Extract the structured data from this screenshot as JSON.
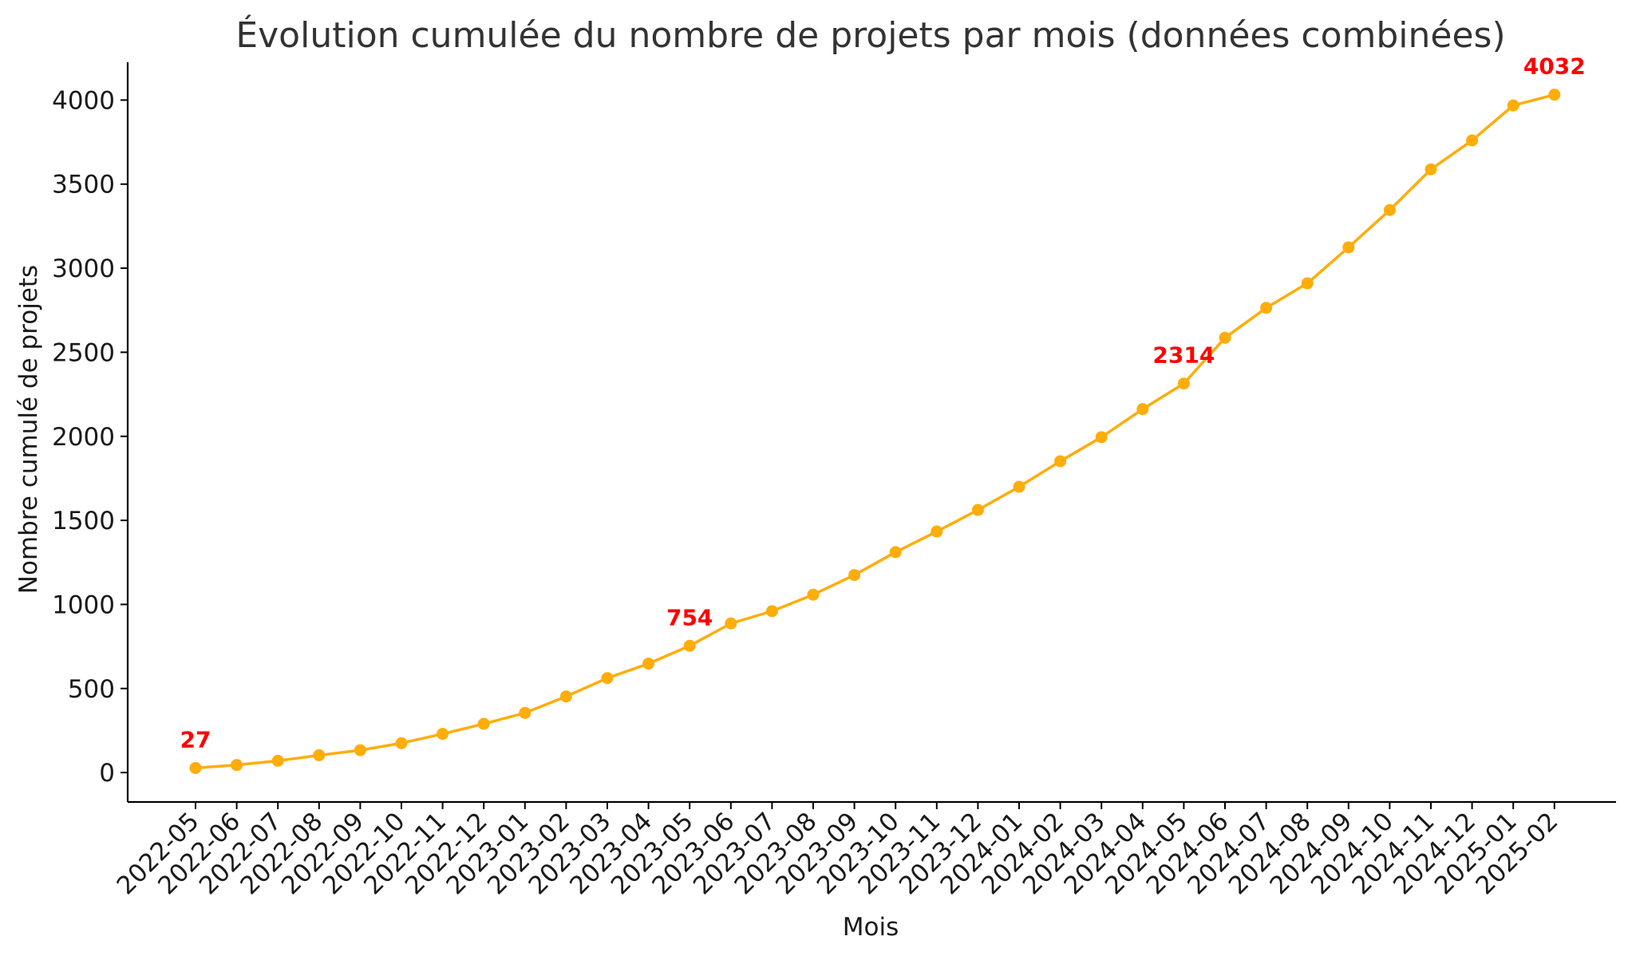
{
  "chart_data": {
    "type": "line",
    "title": "Évolution cumulée du nombre de projets par mois (données combinées)",
    "xlabel": "Mois",
    "ylabel": "Nombre cumulé de projets",
    "ylim": [
      -175,
      4225
    ],
    "yticks": [
      0,
      500,
      1000,
      1500,
      2000,
      2500,
      3000,
      3500,
      4000
    ],
    "grid": false,
    "categories": [
      "2022-05",
      "2022-06",
      "2022-07",
      "2022-08",
      "2022-09",
      "2022-10",
      "2022-11",
      "2022-12",
      "2023-01",
      "2023-02",
      "2023-03",
      "2023-04",
      "2023-05",
      "2023-06",
      "2023-07",
      "2023-08",
      "2023-09",
      "2023-10",
      "2023-11",
      "2023-12",
      "2024-01",
      "2024-02",
      "2024-03",
      "2024-04",
      "2024-05",
      "2024-06",
      "2024-07",
      "2024-08",
      "2024-09",
      "2024-10",
      "2024-11",
      "2024-12",
      "2025-01",
      "2025-02"
    ],
    "series": [
      {
        "values": [
          27,
          45,
          70,
          103,
          133,
          175,
          230,
          290,
          355,
          453,
          562,
          648,
          754,
          887,
          960,
          1058,
          1175,
          1311,
          1434,
          1562,
          1700,
          1852,
          1995,
          2162,
          2314,
          2586,
          2764,
          2910,
          3124,
          3346,
          3588,
          3760,
          3968,
          4032
        ],
        "color": "#ffad0a"
      }
    ],
    "annotations": [
      {
        "index": 0,
        "text": "27"
      },
      {
        "index": 12,
        "text": "754"
      },
      {
        "index": 24,
        "text": "2314"
      },
      {
        "index": 33,
        "text": "4032"
      }
    ],
    "annotation_color": "#ff0000"
  }
}
